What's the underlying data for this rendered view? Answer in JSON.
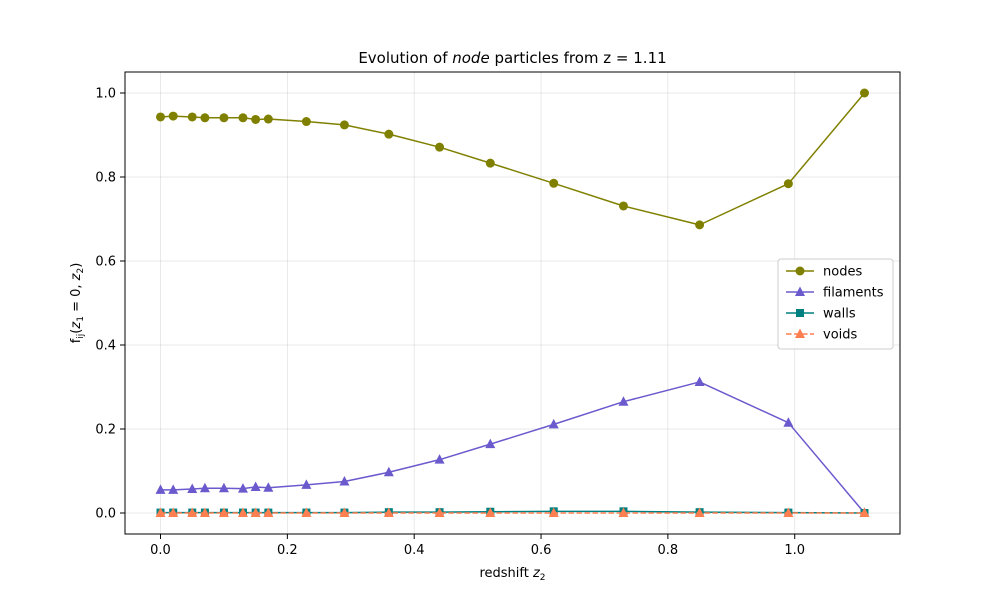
{
  "chart_data": {
    "type": "line",
    "title": {
      "prefix": "Evolution of ",
      "emphasis": "node",
      "suffix": " particles from z = 1.11"
    },
    "xlabel": {
      "text": "redshift ",
      "math_base": "z",
      "math_sub": "2"
    },
    "ylabel": "f_ij(z_1 = 0, z_2)",
    "xlim": [
      -0.056,
      1.166
    ],
    "ylim": [
      -0.05,
      1.05
    ],
    "xticks": [
      0.0,
      0.2,
      0.4,
      0.6,
      0.8,
      1.0
    ],
    "xtick_labels": [
      "0.0",
      "0.2",
      "0.4",
      "0.6",
      "0.8",
      "1.0"
    ],
    "yticks": [
      0.0,
      0.2,
      0.4,
      0.6,
      0.8,
      1.0
    ],
    "ytick_labels": [
      "0.0",
      "0.2",
      "0.4",
      "0.6",
      "0.8",
      "1.0"
    ],
    "grid": true,
    "legend_position": "center-right",
    "x": [
      0.0,
      0.02,
      0.05,
      0.07,
      0.1,
      0.13,
      0.15,
      0.17,
      0.23,
      0.29,
      0.36,
      0.44,
      0.52,
      0.62,
      0.73,
      0.85,
      0.99,
      1.11
    ],
    "series": [
      {
        "name": "nodes",
        "color": "#808000",
        "marker": "circle",
        "linestyle": "solid",
        "values": [
          0.943,
          0.945,
          0.943,
          0.941,
          0.941,
          0.941,
          0.937,
          0.938,
          0.932,
          0.924,
          0.902,
          0.871,
          0.833,
          0.785,
          0.731,
          0.686,
          0.784,
          1.0
        ]
      },
      {
        "name": "filaments",
        "color": "#6a5acd",
        "marker": "triangle",
        "linestyle": "solid",
        "values": [
          0.055,
          0.055,
          0.057,
          0.059,
          0.059,
          0.058,
          0.062,
          0.06,
          0.067,
          0.075,
          0.097,
          0.127,
          0.164,
          0.211,
          0.265,
          0.312,
          0.215,
          0.0
        ]
      },
      {
        "name": "walls",
        "color": "#008080",
        "marker": "square",
        "linestyle": "solid",
        "values": [
          0.001,
          0.001,
          0.001,
          0.001,
          0.001,
          0.001,
          0.001,
          0.001,
          0.001,
          0.001,
          0.002,
          0.002,
          0.003,
          0.004,
          0.004,
          0.002,
          0.001,
          0.0
        ]
      },
      {
        "name": "voids",
        "color": "#ff7f50",
        "marker": "triangle",
        "linestyle": "dashed",
        "values": [
          0.0,
          0.0,
          0.0,
          0.0,
          0.0,
          0.0,
          0.0,
          0.0,
          0.0,
          0.0,
          0.0,
          0.0,
          0.0,
          0.0,
          0.0,
          0.0,
          0.0,
          0.0
        ]
      }
    ]
  }
}
